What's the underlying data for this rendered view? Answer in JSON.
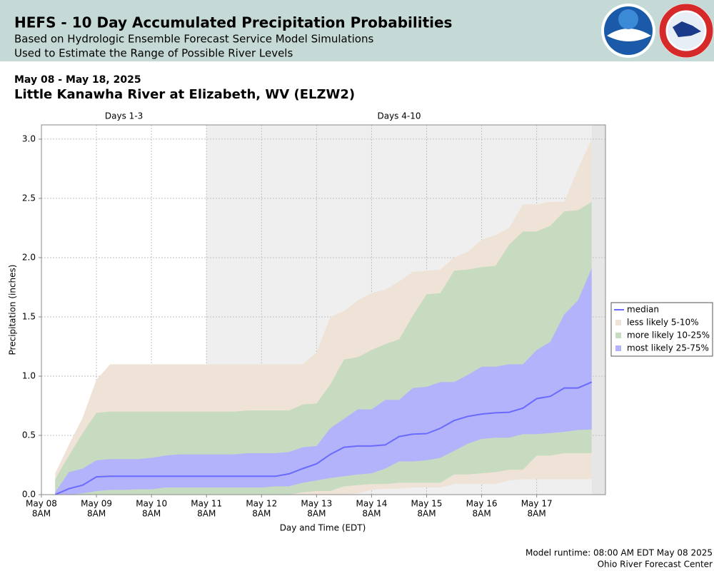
{
  "header": {
    "title": "HEFS - 10 Day Accumulated Precipitation Probabilities",
    "subtitle_1": "Based on Hydrologic Ensemble Forecast Service Model Simulations",
    "subtitle_2": "Used to Estimate the Range of Possible River Levels",
    "date_range": "May 08 - May 18, 2025",
    "location": "Little Kanawha River at Elizabeth, WV (ELZW2)"
  },
  "footer": {
    "runtime": "Model runtime: 08:00 AM EDT May 08 2025",
    "center": "Ohio River Forecast Center"
  },
  "chart_data": {
    "type": "band",
    "x_label": "Day and Time (EDT)",
    "y_label": "Precipitation (inches)",
    "regions": [
      {
        "label": "Days 1-3",
        "range": [
          0,
          72
        ],
        "color": "#ffffff"
      },
      {
        "label": "Days 4-10",
        "range": [
          72,
          240
        ],
        "color": "#efefef"
      }
    ],
    "xlim": [
      0,
      246
    ],
    "ylim": [
      0,
      3.12
    ],
    "xticks": [
      {
        "value": 0,
        "label": [
          "May 08",
          "8AM"
        ]
      },
      {
        "value": 24,
        "label": [
          "May 09",
          "8AM"
        ]
      },
      {
        "value": 48,
        "label": [
          "May 10",
          "8AM"
        ]
      },
      {
        "value": 72,
        "label": [
          "May 11",
          "8AM"
        ]
      },
      {
        "value": 96,
        "label": [
          "May 12",
          "8AM"
        ]
      },
      {
        "value": 120,
        "label": [
          "May 13",
          "8AM"
        ]
      },
      {
        "value": 144,
        "label": [
          "May 14",
          "8AM"
        ]
      },
      {
        "value": 168,
        "label": [
          "May 15",
          "8AM"
        ]
      },
      {
        "value": 192,
        "label": [
          "May 16",
          "8AM"
        ]
      },
      {
        "value": 216,
        "label": [
          "May 17",
          "8AM"
        ]
      }
    ],
    "yticks": [
      {
        "value": 0,
        "label": "0.0"
      },
      0.5,
      {
        "value": 1,
        "label": "1.0"
      },
      1.5,
      {
        "value": 2,
        "label": "2.0"
      },
      2.5,
      {
        "value": 3,
        "label": "3.0"
      }
    ],
    "grid": true,
    "legend": "right",
    "x": [
      6,
      12,
      18,
      24,
      30,
      36,
      42,
      48,
      54,
      60,
      66,
      72,
      78,
      84,
      90,
      96,
      102,
      108,
      114,
      120,
      126,
      132,
      138,
      144,
      150,
      156,
      162,
      168,
      174,
      180,
      186,
      192,
      198,
      204,
      210,
      216,
      222,
      228,
      234,
      240
    ],
    "series": [
      {
        "name": "median",
        "color": "#6a6aff",
        "values": [
          0,
          0.05,
          0.08,
          0.15,
          0.155,
          0.155,
          0.155,
          0.155,
          0.155,
          0.155,
          0.155,
          0.155,
          0.155,
          0.155,
          0.155,
          0.155,
          0.155,
          0.175,
          0.22,
          0.26,
          0.34,
          0.4,
          0.41,
          0.41,
          0.42,
          0.49,
          0.51,
          0.515,
          0.56,
          0.625,
          0.66,
          0.68,
          0.69,
          0.695,
          0.73,
          0.81,
          0.83,
          0.9,
          0.9,
          0.95
        ]
      },
      {
        "name": "less likely 5-10%",
        "color": "#eee3d6",
        "lower": [
          0,
          0,
          0,
          0,
          0,
          0,
          0,
          0,
          0,
          0,
          0,
          0,
          0,
          0,
          0,
          0,
          0,
          0,
          0,
          0,
          0,
          0,
          0.01,
          0.04,
          0.05,
          0.05,
          0.06,
          0.06,
          0.06,
          0.09,
          0.09,
          0.09,
          0.09,
          0.12,
          0.13,
          0.13,
          0.13,
          0.13,
          0.13,
          0.13
        ],
        "upper": [
          0.18,
          0.42,
          0.65,
          0.97,
          1.1,
          1.1,
          1.1,
          1.1,
          1.1,
          1.1,
          1.1,
          1.1,
          1.1,
          1.1,
          1.1,
          1.1,
          1.1,
          1.1,
          1.1,
          1.2,
          1.5,
          1.55,
          1.64,
          1.7,
          1.73,
          1.8,
          1.88,
          1.89,
          1.9,
          2.0,
          2.05,
          2.15,
          2.19,
          2.25,
          2.45,
          2.45,
          2.47,
          2.47,
          2.75,
          3.0
        ]
      },
      {
        "name": "more likely 10-25%",
        "color": "#c7dbc0",
        "lower": [
          0,
          0,
          0,
          0,
          0,
          0,
          0,
          0,
          0,
          0,
          0,
          0,
          0,
          0,
          0,
          0,
          0,
          0,
          0.02,
          0.03,
          0.03,
          0.07,
          0.08,
          0.09,
          0.09,
          0.1,
          0.1,
          0.1,
          0.1,
          0.17,
          0.17,
          0.18,
          0.19,
          0.21,
          0.21,
          0.33,
          0.33,
          0.35,
          0.35,
          0.35
        ],
        "upper": [
          0.13,
          0.33,
          0.52,
          0.69,
          0.7,
          0.7,
          0.7,
          0.7,
          0.7,
          0.7,
          0.7,
          0.7,
          0.7,
          0.7,
          0.71,
          0.71,
          0.71,
          0.71,
          0.76,
          0.77,
          0.93,
          1.14,
          1.16,
          1.22,
          1.27,
          1.31,
          1.51,
          1.69,
          1.7,
          1.89,
          1.9,
          1.92,
          1.93,
          2.11,
          2.22,
          2.22,
          2.27,
          2.39,
          2.4,
          2.47
        ]
      },
      {
        "name": "most likely 25-75%",
        "color": "#b3b3fb",
        "lower": [
          0,
          0,
          0.01,
          0.03,
          0.04,
          0.04,
          0.045,
          0.045,
          0.06,
          0.06,
          0.06,
          0.06,
          0.06,
          0.06,
          0.06,
          0.06,
          0.07,
          0.07,
          0.1,
          0.12,
          0.14,
          0.155,
          0.17,
          0.18,
          0.22,
          0.28,
          0.28,
          0.29,
          0.31,
          0.37,
          0.43,
          0.47,
          0.48,
          0.48,
          0.51,
          0.51,
          0.52,
          0.53,
          0.545,
          0.55
        ],
        "upper": [
          0.02,
          0.19,
          0.22,
          0.29,
          0.3,
          0.3,
          0.3,
          0.31,
          0.33,
          0.34,
          0.34,
          0.34,
          0.34,
          0.34,
          0.35,
          0.35,
          0.35,
          0.36,
          0.4,
          0.41,
          0.56,
          0.64,
          0.72,
          0.72,
          0.8,
          0.8,
          0.9,
          0.91,
          0.95,
          0.95,
          1.01,
          1.08,
          1.08,
          1.1,
          1.1,
          1.22,
          1.29,
          1.52,
          1.64,
          1.91
        ]
      }
    ]
  }
}
